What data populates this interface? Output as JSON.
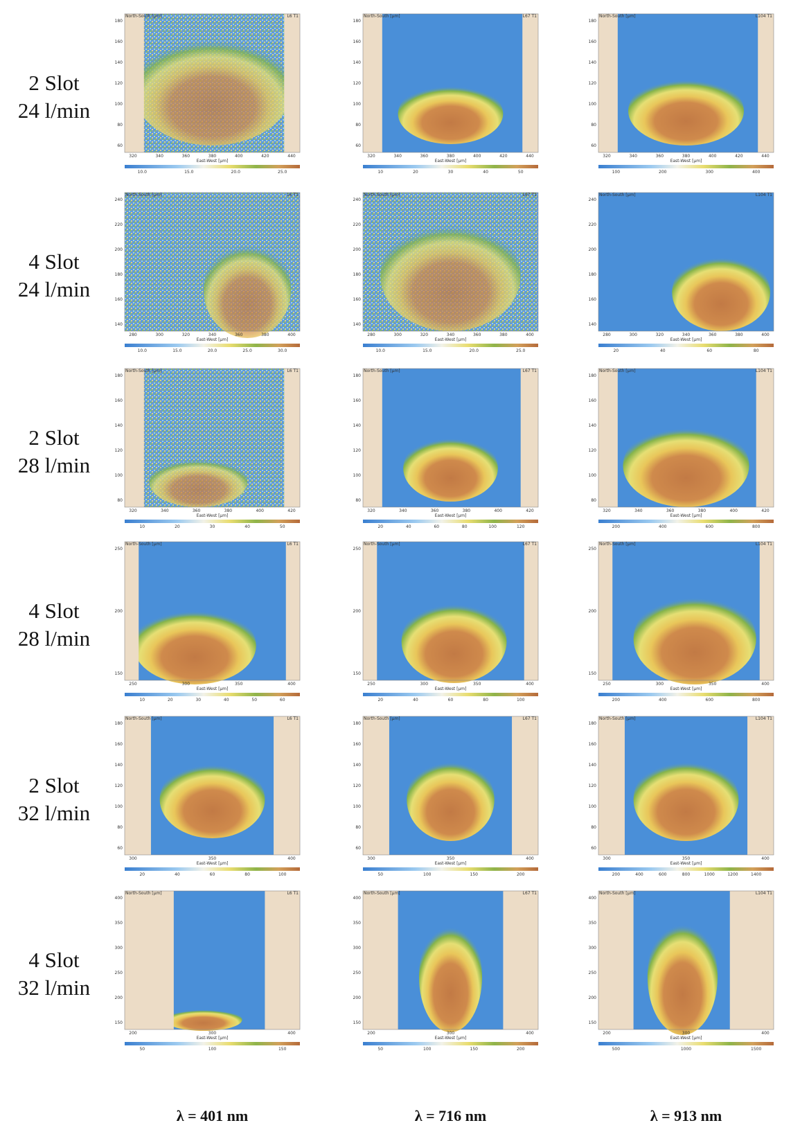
{
  "rows": [
    {
      "label": [
        "2 Slot",
        "24 l/min"
      ],
      "panels": [
        {
          "y_label": "North-South [µm]",
          "tag": "L6 T1",
          "x_label": "East-West [µm]",
          "yticks": [
            "180",
            "160",
            "140",
            "120",
            "100",
            "80",
            "60"
          ],
          "xticks": [
            "320",
            "340",
            "360",
            "380",
            "400",
            "420",
            "440"
          ],
          "cbar": [
            "10.0",
            "15.0",
            "20.0",
            "25.0"
          ]
        },
        {
          "y_label": "North-South [µm]",
          "tag": "L67 T1",
          "x_label": "East-West [µm]",
          "yticks": [
            "180",
            "160",
            "140",
            "120",
            "100",
            "80",
            "60"
          ],
          "xticks": [
            "320",
            "340",
            "360",
            "380",
            "400",
            "420",
            "440"
          ],
          "cbar": [
            "10",
            "20",
            "30",
            "40",
            "50"
          ]
        },
        {
          "y_label": "North-South [µm]",
          "tag": "L104 T1",
          "x_label": "East-West [µm]",
          "yticks": [
            "180",
            "160",
            "140",
            "120",
            "100",
            "80",
            "60"
          ],
          "xticks": [
            "320",
            "340",
            "360",
            "380",
            "400",
            "420",
            "440"
          ],
          "cbar": [
            "100",
            "200",
            "300",
            "400"
          ]
        }
      ]
    },
    {
      "label": [
        "4 Slot",
        "24 l/min"
      ],
      "panels": [
        {
          "y_label": "North-South [µm]",
          "tag": "L6 T1",
          "x_label": "East-West [µm]",
          "yticks": [
            "240",
            "220",
            "200",
            "180",
            "160",
            "140"
          ],
          "xticks": [
            "280",
            "300",
            "320",
            "340",
            "360",
            "380",
            "400"
          ],
          "cbar": [
            "10.0",
            "15.0",
            "20.0",
            "25.0",
            "30.0"
          ]
        },
        {
          "y_label": "North-South [µm]",
          "tag": "L67 T1",
          "x_label": "East-West [µm]",
          "yticks": [
            "240",
            "220",
            "200",
            "180",
            "160",
            "140"
          ],
          "xticks": [
            "280",
            "300",
            "320",
            "340",
            "360",
            "380",
            "400"
          ],
          "cbar": [
            "10.0",
            "15.0",
            "20.0",
            "25.0"
          ]
        },
        {
          "y_label": "North-South [µm]",
          "tag": "L104 T1",
          "x_label": "East-West [µm]",
          "yticks": [
            "240",
            "220",
            "200",
            "180",
            "160",
            "140"
          ],
          "xticks": [
            "280",
            "300",
            "320",
            "340",
            "360",
            "380",
            "400"
          ],
          "cbar": [
            "20",
            "40",
            "60",
            "80"
          ]
        }
      ]
    },
    {
      "label": [
        "2 Slot",
        "28 l/min"
      ],
      "panels": [
        {
          "y_label": "North-South [µm]",
          "tag": "L6 T1",
          "x_label": "East-West [µm]",
          "yticks": [
            "180",
            "160",
            "140",
            "120",
            "100",
            "80"
          ],
          "xticks": [
            "320",
            "340",
            "360",
            "380",
            "400",
            "420"
          ],
          "cbar": [
            "10",
            "20",
            "30",
            "40",
            "50"
          ]
        },
        {
          "y_label": "North-South [µm]",
          "tag": "L67 T1",
          "x_label": "East-West [µm]",
          "yticks": [
            "180",
            "160",
            "140",
            "120",
            "100",
            "80"
          ],
          "xticks": [
            "320",
            "340",
            "360",
            "380",
            "400",
            "420"
          ],
          "cbar": [
            "20",
            "40",
            "60",
            "80",
            "100",
            "120"
          ]
        },
        {
          "y_label": "North-South [µm]",
          "tag": "L104 T1",
          "x_label": "East-West [µm]",
          "yticks": [
            "180",
            "160",
            "140",
            "120",
            "100",
            "80"
          ],
          "xticks": [
            "320",
            "340",
            "360",
            "380",
            "400",
            "420"
          ],
          "cbar": [
            "200",
            "400",
            "600",
            "800"
          ]
        }
      ]
    },
    {
      "label": [
        "4 Slot",
        "28 l/min"
      ],
      "panels": [
        {
          "y_label": "North-South [µm]",
          "tag": "L6 T1",
          "x_label": "East-West [µm]",
          "yticks": [
            "250",
            "200",
            "150"
          ],
          "xticks": [
            "250",
            "300",
            "350",
            "400"
          ],
          "cbar": [
            "10",
            "20",
            "30",
            "40",
            "50",
            "60"
          ]
        },
        {
          "y_label": "North-South [µm]",
          "tag": "L67 T1",
          "x_label": "East-West [µm]",
          "yticks": [
            "250",
            "200",
            "150"
          ],
          "xticks": [
            "250",
            "300",
            "350",
            "400"
          ],
          "cbar": [
            "20",
            "40",
            "60",
            "80",
            "100"
          ]
        },
        {
          "y_label": "North-South [µm]",
          "tag": "L104 T1",
          "x_label": "East-West [µm]",
          "yticks": [
            "250",
            "200",
            "150"
          ],
          "xticks": [
            "250",
            "300",
            "350",
            "400"
          ],
          "cbar": [
            "200",
            "400",
            "600",
            "800"
          ]
        }
      ]
    },
    {
      "label": [
        "2 Slot",
        "32 l/min"
      ],
      "panels": [
        {
          "y_label": "North-South [µm]",
          "tag": "L6 T1",
          "x_label": "East-West [µm]",
          "yticks": [
            "180",
            "160",
            "140",
            "120",
            "100",
            "80",
            "60"
          ],
          "xticks": [
            "300",
            "350",
            "400"
          ],
          "cbar": [
            "20",
            "40",
            "60",
            "80",
            "100"
          ]
        },
        {
          "y_label": "North-South [µm]",
          "tag": "L67 T1",
          "x_label": "East-West [µm]",
          "yticks": [
            "180",
            "160",
            "140",
            "120",
            "100",
            "80",
            "60"
          ],
          "xticks": [
            "300",
            "350",
            "400"
          ],
          "cbar": [
            "50",
            "100",
            "150",
            "200"
          ]
        },
        {
          "y_label": "North-South [µm]",
          "tag": "L104 T1",
          "x_label": "East-West [µm]",
          "yticks": [
            "180",
            "160",
            "140",
            "120",
            "100",
            "80",
            "60"
          ],
          "xticks": [
            "300",
            "350",
            "400"
          ],
          "cbar": [
            "200",
            "400",
            "600",
            "800",
            "1000",
            "1200",
            "1400"
          ]
        }
      ]
    },
    {
      "label": [
        "4 Slot",
        "32 l/min"
      ],
      "panels": [
        {
          "y_label": "North-South [µm]",
          "tag": "L6 T1",
          "x_label": "East-West [µm]",
          "yticks": [
            "400",
            "350",
            "300",
            "250",
            "200",
            "150"
          ],
          "xticks": [
            "200",
            "300",
            "400"
          ],
          "cbar": [
            "50",
            "100",
            "150"
          ]
        },
        {
          "y_label": "North-South [µm]",
          "tag": "L67 T1",
          "x_label": "East-West [µm]",
          "yticks": [
            "400",
            "350",
            "300",
            "250",
            "200",
            "150"
          ],
          "xticks": [
            "200",
            "300",
            "400"
          ],
          "cbar": [
            "50",
            "100",
            "150",
            "200"
          ]
        },
        {
          "y_label": "North-South [µm]",
          "tag": "L104 T1",
          "x_label": "East-West [µm]",
          "yticks": [
            "400",
            "350",
            "300",
            "250",
            "200",
            "150"
          ],
          "xticks": [
            "200",
            "300",
            "400"
          ],
          "cbar": [
            "500",
            "1000",
            "1500"
          ]
        }
      ]
    }
  ],
  "columns": [
    "λ = 401 nm",
    "λ = 716 nm",
    "λ = 913 nm"
  ]
}
